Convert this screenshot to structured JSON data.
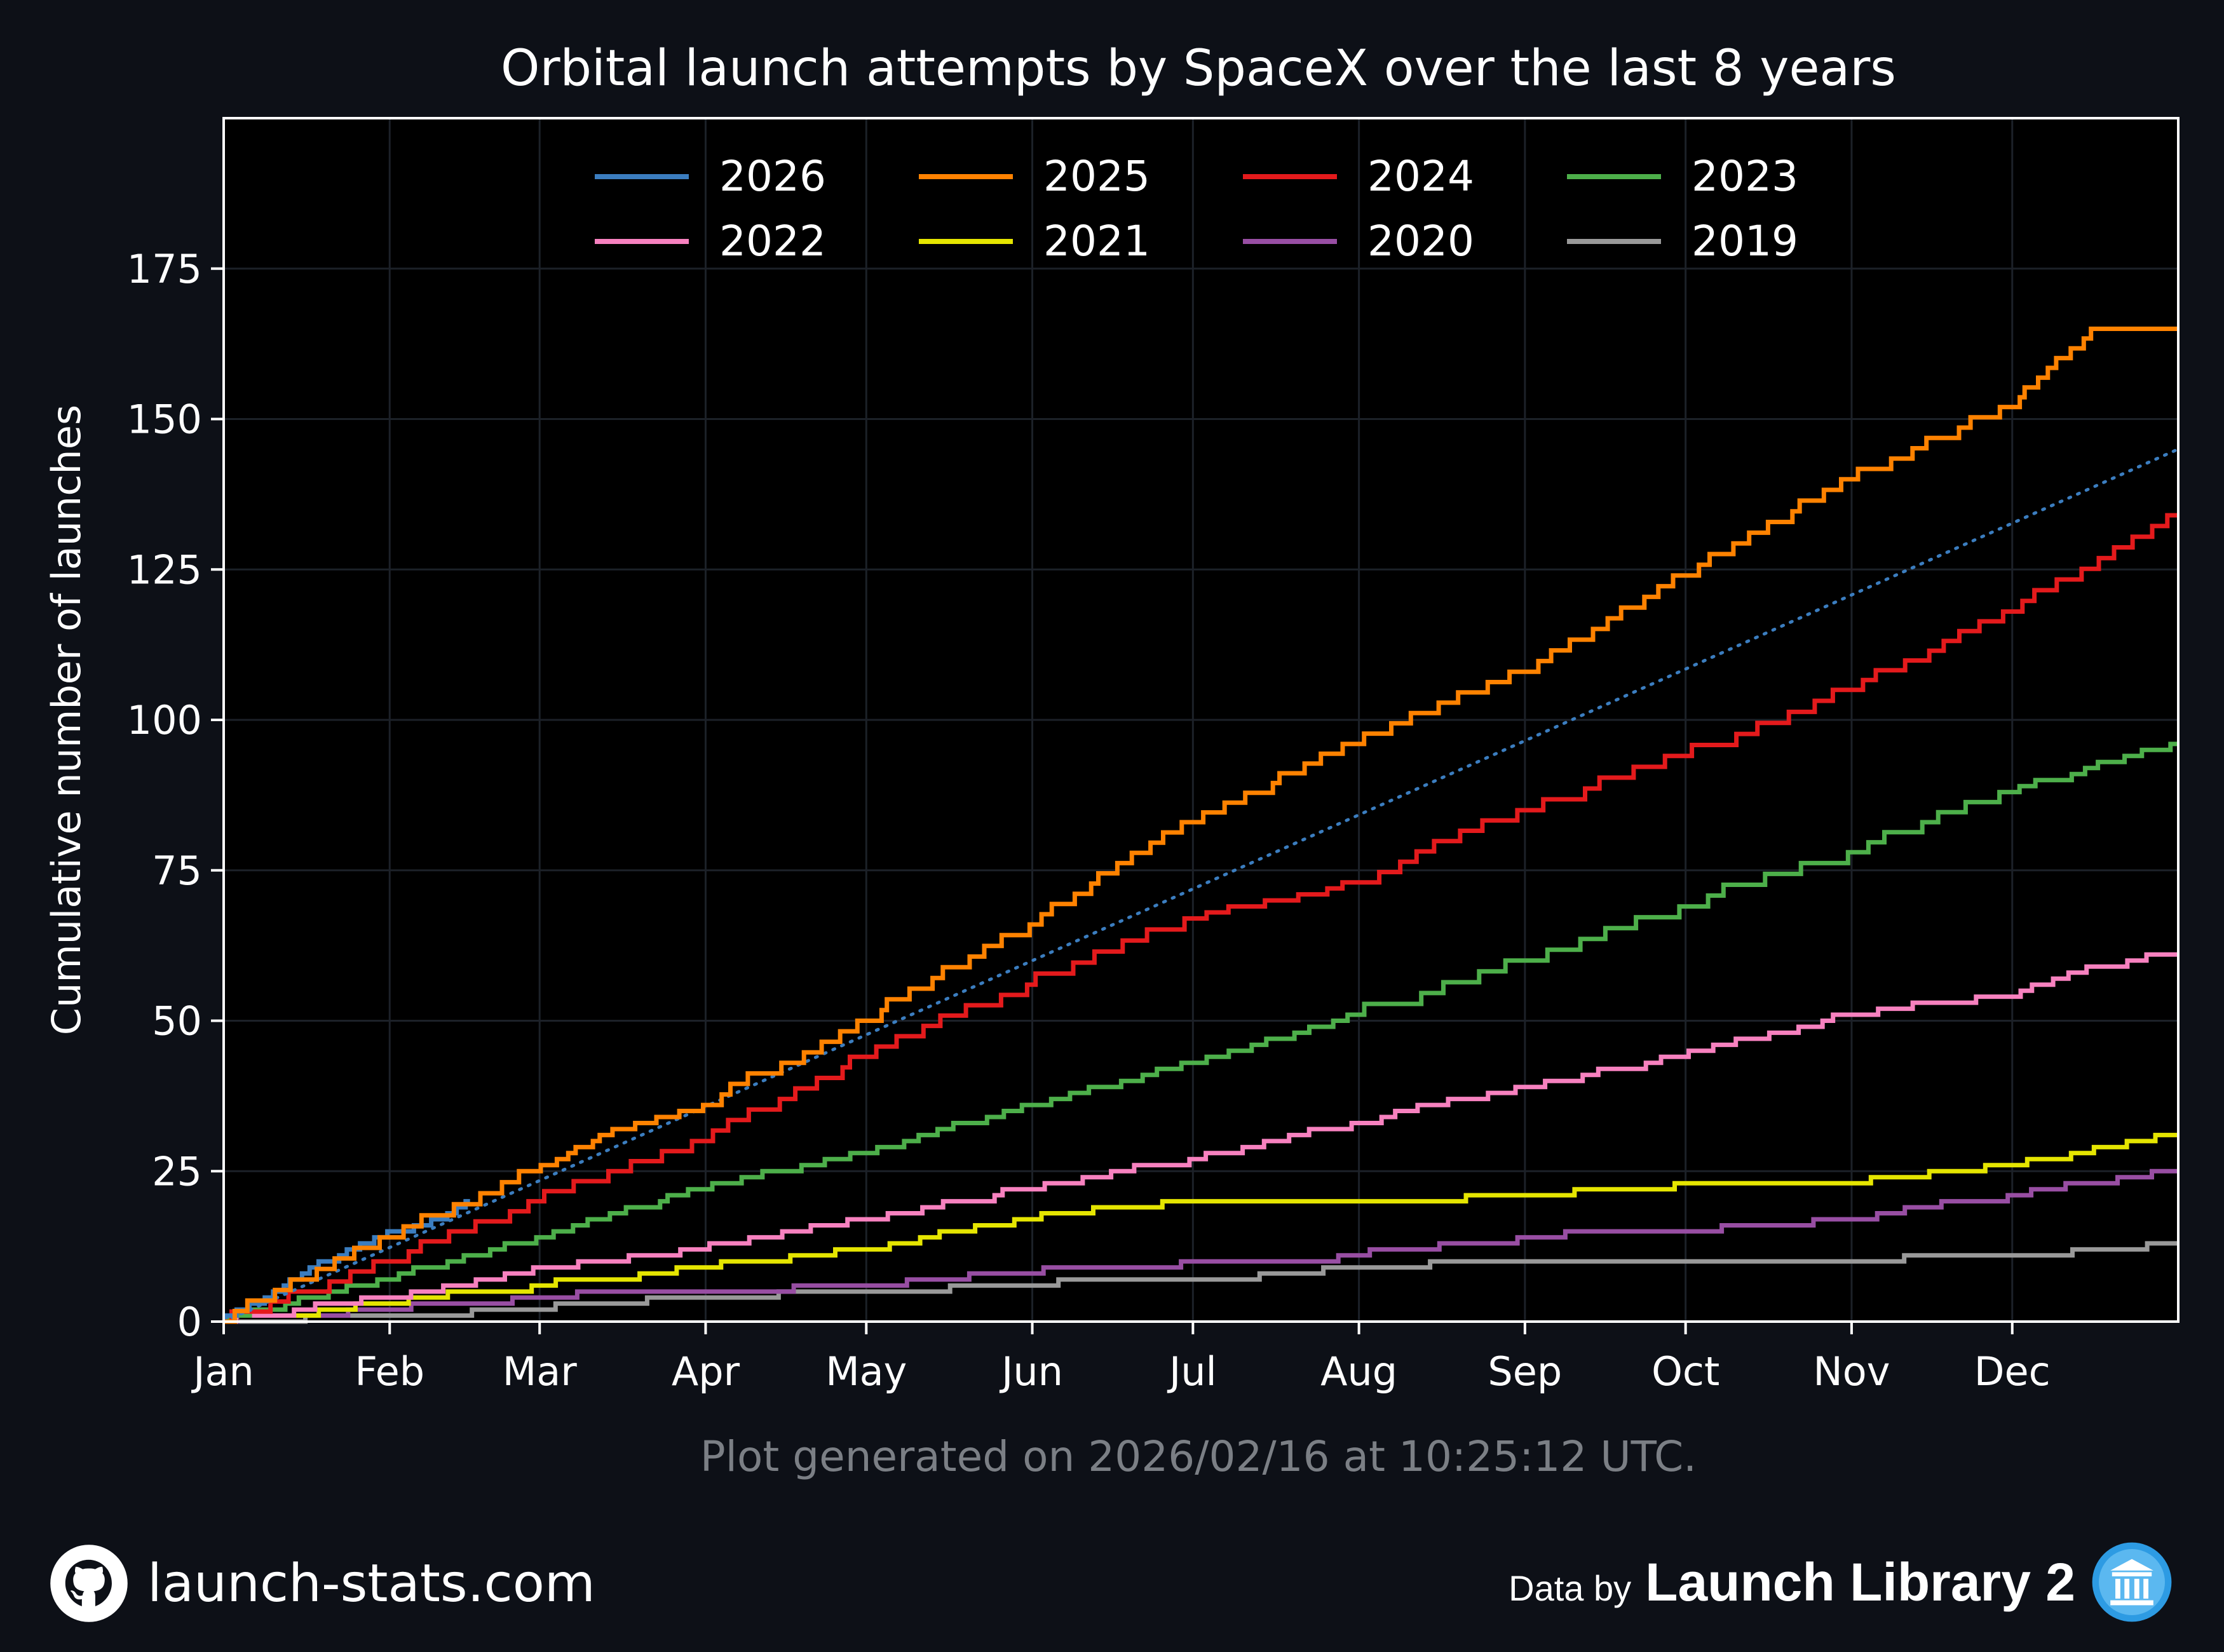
{
  "chart_data": {
    "type": "line",
    "title": "Orbital launch attempts by SpaceX over the last 8 years",
    "xlabel": "",
    "ylabel": "Cumulative number of launches",
    "ylim": [
      0,
      200
    ],
    "xlim": [
      0,
      365
    ],
    "grid": true,
    "legend_position": "top-center",
    "yticks": [
      0,
      25,
      50,
      75,
      100,
      125,
      150,
      175
    ],
    "xticks": [
      {
        "day": 0,
        "label": "Jan"
      },
      {
        "day": 31,
        "label": "Feb"
      },
      {
        "day": 59,
        "label": "Mar"
      },
      {
        "day": 90,
        "label": "Apr"
      },
      {
        "day": 120,
        "label": "May"
      },
      {
        "day": 151,
        "label": "Jun"
      },
      {
        "day": 181,
        "label": "Jul"
      },
      {
        "day": 212,
        "label": "Aug"
      },
      {
        "day": 243,
        "label": "Sep"
      },
      {
        "day": 273,
        "label": "Oct"
      },
      {
        "day": 304,
        "label": "Nov"
      },
      {
        "day": 334,
        "label": "Dec"
      }
    ],
    "series": [
      {
        "name": "2026",
        "color": "#3b7dbf",
        "x": [
          0,
          8,
          15,
          22,
          30,
          38,
          44,
          46
        ],
        "y": [
          0,
          4,
          8,
          11,
          14,
          16,
          19,
          20
        ],
        "projection": {
          "x": [
            0,
            365
          ],
          "y": [
            0,
            145
          ]
        }
      },
      {
        "name": "2025",
        "color": "#ff8200",
        "x": [
          0,
          31,
          59,
          72,
          90,
          120,
          151,
          181,
          212,
          243,
          273,
          304,
          334,
          350,
          365
        ],
        "y": [
          0,
          14,
          25,
          31,
          36,
          50,
          66,
          83,
          96,
          108,
          124,
          140,
          152,
          165,
          165
        ]
      },
      {
        "name": "2024",
        "color": "#e41a1c",
        "x": [
          0,
          31,
          59,
          90,
          120,
          151,
          181,
          212,
          243,
          273,
          304,
          334,
          365
        ],
        "y": [
          0,
          10,
          20,
          30,
          44,
          56,
          67,
          73,
          85,
          94,
          105,
          118,
          134
        ]
      },
      {
        "name": "2023",
        "color": "#4daf4a",
        "x": [
          0,
          31,
          59,
          90,
          120,
          151,
          181,
          212,
          243,
          273,
          304,
          334,
          365
        ],
        "y": [
          0,
          7,
          14,
          22,
          28,
          36,
          43,
          51,
          60,
          69,
          78,
          88,
          96
        ]
      },
      {
        "name": "2022",
        "color": "#f781bf",
        "x": [
          0,
          31,
          59,
          90,
          120,
          151,
          181,
          212,
          243,
          273,
          304,
          334,
          350,
          365
        ],
        "y": [
          0,
          4,
          9,
          12,
          17,
          22,
          27,
          33,
          39,
          44,
          51,
          54,
          59,
          61
        ]
      },
      {
        "name": "2021",
        "color": "#e5e500",
        "x": [
          0,
          31,
          59,
          90,
          120,
          151,
          181,
          212,
          243,
          273,
          304,
          334,
          365
        ],
        "y": [
          0,
          3,
          6,
          9,
          12,
          17,
          20,
          20,
          21,
          23,
          23,
          26,
          31
        ]
      },
      {
        "name": "2020",
        "color": "#984ea3",
        "x": [
          0,
          31,
          59,
          90,
          120,
          151,
          181,
          212,
          243,
          273,
          304,
          334,
          365
        ],
        "y": [
          0,
          2,
          4,
          5,
          6,
          8,
          10,
          11,
          14,
          15,
          17,
          21,
          25
        ]
      },
      {
        "name": "2019",
        "color": "#999999",
        "x": [
          0,
          31,
          59,
          90,
          120,
          151,
          181,
          212,
          243,
          273,
          304,
          334,
          365
        ],
        "y": [
          0,
          1,
          2,
          4,
          5,
          6,
          7,
          9,
          10,
          10,
          10,
          11,
          13
        ]
      }
    ],
    "annotation": "Plot generated on 2026/02/16 at 10:25:12 UTC."
  },
  "colors": {
    "background": "#0d1017",
    "plot_background": "#000000",
    "text": "#ffffff",
    "grid": "#1c2128",
    "annotation": "#7b7f85"
  },
  "footer": {
    "site": "launch-stats.com",
    "data_by": "Data by",
    "source": "Launch Library 2",
    "github_icon": "github-icon",
    "source_icon": "launch-library-icon"
  }
}
